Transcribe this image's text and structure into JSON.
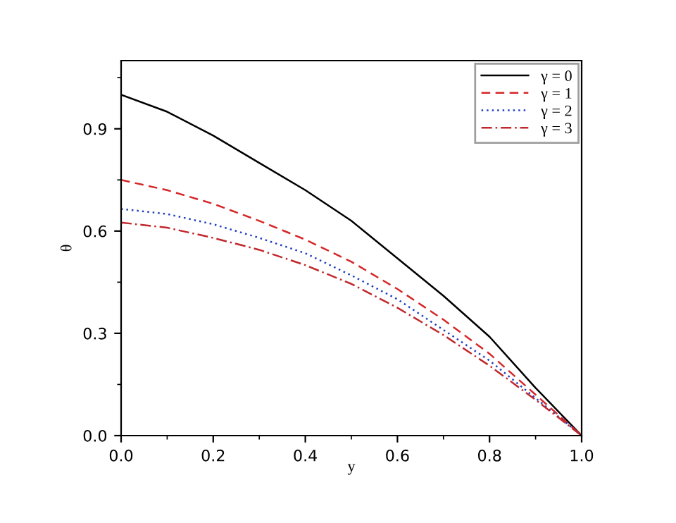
{
  "chart_data": {
    "type": "line",
    "xlabel": "y",
    "ylabel": "θ",
    "x": [
      0,
      0.1,
      0.2,
      0.3,
      0.4,
      0.5,
      0.6,
      0.7,
      0.8,
      0.9,
      1.0
    ],
    "series": [
      {
        "name": "γ = 0",
        "color": "#000000",
        "line_style": "solid",
        "values": [
          1.0,
          0.95,
          0.88,
          0.8,
          0.72,
          0.63,
          0.52,
          0.41,
          0.29,
          0.14,
          0
        ]
      },
      {
        "name": "γ = 1",
        "color": "#d62728",
        "line_style": "dashed",
        "values": [
          0.75,
          0.72,
          0.68,
          0.63,
          0.575,
          0.51,
          0.43,
          0.34,
          0.24,
          0.12,
          0
        ]
      },
      {
        "name": "γ = 2",
        "color": "#1f3fbf",
        "line_style": "dotted",
        "values": [
          0.665,
          0.65,
          0.62,
          0.58,
          0.535,
          0.47,
          0.4,
          0.31,
          0.22,
          0.11,
          0
        ]
      },
      {
        "name": "γ = 3",
        "color": "#c0282d",
        "line_style": "dashdot",
        "values": [
          0.625,
          0.61,
          0.58,
          0.545,
          0.5,
          0.445,
          0.375,
          0.295,
          0.205,
          0.105,
          0
        ]
      }
    ],
    "xlim": [
      0,
      1.0
    ],
    "ylim": [
      0,
      1.1
    ],
    "xticks": [
      {
        "value": 0,
        "label": "0.0"
      },
      0.2,
      0.4,
      0.6,
      0.8,
      {
        "value": 1,
        "label": "1.0"
      }
    ],
    "yticks": [
      {
        "value": 0,
        "label": "0.0"
      },
      0.3,
      0.6,
      0.9
    ],
    "grid": false,
    "legend": "top right",
    "marker": "none"
  }
}
